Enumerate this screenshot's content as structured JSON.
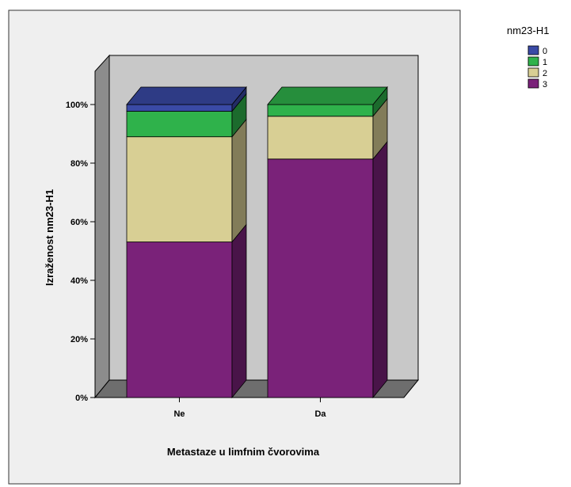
{
  "chart_data": {
    "type": "bar",
    "stacked": true,
    "three_d": true,
    "xlabel": "Metastaze u limfnim čvorovima",
    "ylabel": "Izraženost nm23-H1",
    "categories": [
      "Ne",
      "Da"
    ],
    "ylim": [
      0,
      100
    ],
    "yticks": [
      "0%",
      "20%",
      "40%",
      "60%",
      "80%",
      "100%"
    ],
    "legend_title": "nm23-H1",
    "legend_position": "top-right",
    "series": [
      {
        "name": "0",
        "color": "#3a4aa6",
        "values": [
          2.3,
          0
        ]
      },
      {
        "name": "1",
        "color": "#2fb24b",
        "values": [
          8.7,
          4.0
        ]
      },
      {
        "name": "2",
        "color": "#d8cf94",
        "values": [
          35.9,
          14.6
        ]
      },
      {
        "name": "3",
        "color": "#7a2279",
        "values": [
          53.1,
          81.4
        ]
      }
    ],
    "plot_background": "#c8c8c8",
    "frame_background": "#efefef"
  }
}
